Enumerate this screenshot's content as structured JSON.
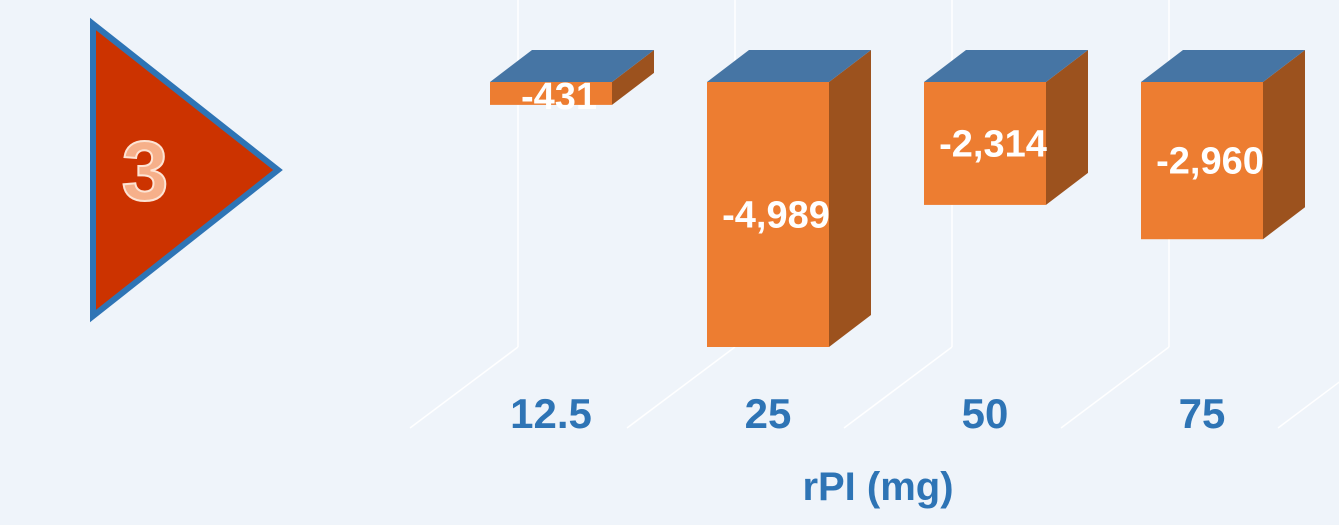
{
  "badge": "3",
  "chart_data": {
    "type": "bar3d",
    "x_label": "rPI (mg)",
    "categories": [
      "12.5",
      "25",
      "50",
      "75"
    ],
    "values": [
      -431,
      -4989,
      -2314,
      -2960
    ],
    "value_labels": [
      "-431",
      "-4,989",
      "-2,314",
      "-2,960"
    ],
    "colors": {
      "front": "#ed7d31",
      "side": "#9c521e",
      "top": "#4675a4"
    }
  }
}
